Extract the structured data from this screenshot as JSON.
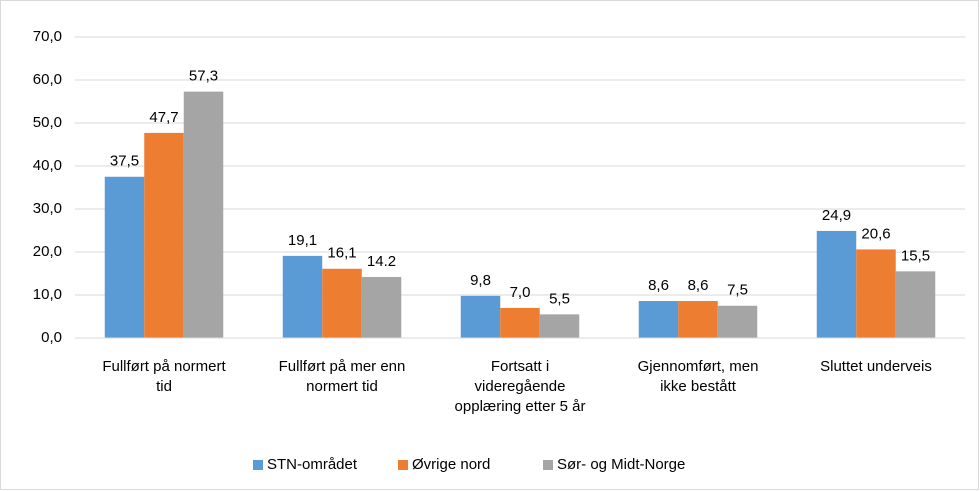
{
  "chart_data": {
    "type": "bar",
    "categories": [
      [
        "Fullført på normert",
        "tid"
      ],
      [
        "Fullført på mer enn",
        "normert tid"
      ],
      [
        "Fortsatt i",
        "videregående",
        "opplæring etter 5 år"
      ],
      [
        "Gjennomført, men",
        "ikke bestått"
      ],
      [
        "Sluttet underveis"
      ]
    ],
    "series": [
      {
        "name": "STN-området",
        "color": "#5b9bd5",
        "values": [
          37.5,
          19.1,
          9.8,
          8.6,
          24.9
        ],
        "value_labels": [
          "37,5",
          "19,1",
          "9,8",
          "8,6",
          "24,9"
        ]
      },
      {
        "name": "Øvrige nord",
        "color": "#ed7d31",
        "values": [
          47.7,
          16.1,
          7.0,
          8.6,
          20.6
        ],
        "value_labels": [
          "47,7",
          "16,1",
          "7,0",
          "8,6",
          "20,6"
        ]
      },
      {
        "name": "Sør- og Midt-Norge",
        "color": "#a5a5a5",
        "values": [
          57.3,
          14.2,
          5.5,
          7.5,
          15.5
        ],
        "value_labels": [
          "57,3",
          "14.2",
          "5,5",
          "7,5",
          "15,5"
        ]
      }
    ],
    "ylim": [
      0,
      70
    ],
    "yticks": [
      {
        "value": 0,
        "label": "0,0"
      },
      {
        "value": 10,
        "label": "10,0"
      },
      {
        "value": 20,
        "label": "20,0"
      },
      {
        "value": 30,
        "label": "30,0"
      },
      {
        "value": 40,
        "label": "40,0"
      },
      {
        "value": 50,
        "label": "50,0"
      },
      {
        "value": 60,
        "label": "60,0"
      },
      {
        "value": 70,
        "label": "70,0"
      }
    ],
    "grid": true,
    "legend": "bottom"
  }
}
